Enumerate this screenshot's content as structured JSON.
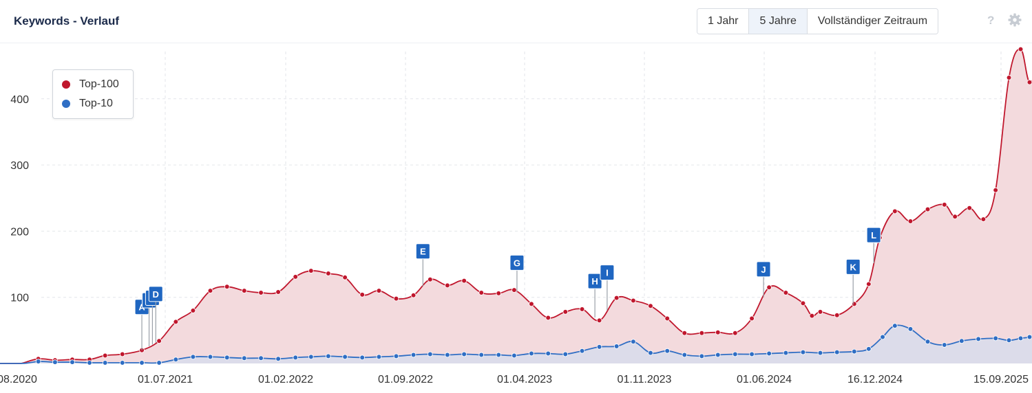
{
  "header": {
    "title": "Keywords - Verlauf",
    "buttons": [
      "1 Jahr",
      "5 Jahre",
      "Vollständiger Zeitraum"
    ],
    "active_button": "5 Jahre",
    "help_label": "?",
    "help_icon": "question-icon",
    "settings_icon": "gear-icon"
  },
  "colors": {
    "top100": "#c0172d",
    "top100_fill": "#f3dadd",
    "top10": "#2f6ec4",
    "top10_fill": "#d9dbeb",
    "marker": "#1f66c1"
  },
  "chart_data": {
    "type": "area",
    "x_tick_labels": [
      "08.2020",
      "01.07.2021",
      "01.02.2022",
      "01.09.2022",
      "01.04.2023",
      "01.11.2023",
      "01.06.2024",
      "16.12.2024",
      "15.09.2025"
    ],
    "y_ticks": [
      100,
      200,
      300,
      400
    ],
    "ylim": [
      0,
      480
    ],
    "grid": true,
    "legend_position": "top-left",
    "series": [
      {
        "name": "Top-100",
        "color": "#c0172d",
        "points": [
          [
            "2020-08-01",
            0
          ],
          [
            "2020-09-01",
            0
          ],
          [
            "2020-10-01",
            0
          ],
          [
            "2020-10-15",
            0
          ],
          [
            "2020-11-15",
            7
          ],
          [
            "2020-12-15",
            5
          ],
          [
            "2021-01-15",
            6
          ],
          [
            "2021-02-15",
            6
          ],
          [
            "2021-03-15",
            12
          ],
          [
            "2021-04-15",
            14
          ],
          [
            "2021-05-20",
            20
          ],
          [
            "2021-06-20",
            34
          ],
          [
            "2021-07-20",
            63
          ],
          [
            "2021-08-20",
            80
          ],
          [
            "2021-09-20",
            110
          ],
          [
            "2021-10-20",
            116
          ],
          [
            "2021-11-20",
            110
          ],
          [
            "2021-12-20",
            107
          ],
          [
            "2022-01-20",
            108
          ],
          [
            "2022-02-20",
            131
          ],
          [
            "2022-03-20",
            140
          ],
          [
            "2022-04-20",
            136
          ],
          [
            "2022-05-20",
            130
          ],
          [
            "2022-06-20",
            104
          ],
          [
            "2022-07-20",
            110
          ],
          [
            "2022-08-20",
            98
          ],
          [
            "2022-09-20",
            103
          ],
          [
            "2022-10-20",
            127
          ],
          [
            "2022-11-20",
            118
          ],
          [
            "2022-12-20",
            125
          ],
          [
            "2023-01-20",
            107
          ],
          [
            "2023-02-20",
            106
          ],
          [
            "2023-03-20",
            111
          ],
          [
            "2023-04-20",
            90
          ],
          [
            "2023-05-20",
            69
          ],
          [
            "2023-06-20",
            78
          ],
          [
            "2023-07-20",
            82
          ],
          [
            "2023-08-20",
            65
          ],
          [
            "2023-09-20",
            99
          ],
          [
            "2023-10-20",
            95
          ],
          [
            "2023-11-20",
            87
          ],
          [
            "2023-12-20",
            68
          ],
          [
            "2024-01-20",
            46
          ],
          [
            "2024-02-20",
            46
          ],
          [
            "2024-03-20",
            47
          ],
          [
            "2024-04-20",
            46
          ],
          [
            "2024-05-20",
            68
          ],
          [
            "2024-06-20",
            115
          ],
          [
            "2024-07-20",
            107
          ],
          [
            "2024-08-20",
            91
          ],
          [
            "2024-09-05",
            72
          ],
          [
            "2024-09-20",
            78
          ],
          [
            "2024-10-20",
            73
          ],
          [
            "2024-11-20",
            90
          ],
          [
            "2024-12-16",
            120
          ],
          [
            "2025-01-05",
            190
          ],
          [
            "2025-02-01",
            230
          ],
          [
            "2025-03-01",
            215
          ],
          [
            "2025-04-01",
            233
          ],
          [
            "2025-05-01",
            240
          ],
          [
            "2025-05-20",
            222
          ],
          [
            "2025-06-15",
            235
          ],
          [
            "2025-07-10",
            218
          ],
          [
            "2025-08-01",
            262
          ],
          [
            "2025-08-25",
            432
          ],
          [
            "2025-09-15",
            475
          ],
          [
            "2025-10-01",
            425
          ],
          [
            "2025-10-20",
            456
          ]
        ]
      },
      {
        "name": "Top-10",
        "color": "#2f6ec4",
        "points": [
          [
            "2020-08-01",
            0
          ],
          [
            "2020-10-15",
            0
          ],
          [
            "2020-11-15",
            3
          ],
          [
            "2020-12-15",
            2
          ],
          [
            "2021-01-15",
            2
          ],
          [
            "2021-02-15",
            1
          ],
          [
            "2021-03-15",
            1
          ],
          [
            "2021-04-15",
            1
          ],
          [
            "2021-05-20",
            1
          ],
          [
            "2021-06-20",
            1
          ],
          [
            "2021-07-20",
            6
          ],
          [
            "2021-08-20",
            10
          ],
          [
            "2021-09-20",
            10
          ],
          [
            "2021-10-20",
            9
          ],
          [
            "2021-11-20",
            8
          ],
          [
            "2021-12-20",
            8
          ],
          [
            "2022-01-20",
            7
          ],
          [
            "2022-02-20",
            9
          ],
          [
            "2022-03-20",
            10
          ],
          [
            "2022-04-20",
            11
          ],
          [
            "2022-05-20",
            10
          ],
          [
            "2022-06-20",
            9
          ],
          [
            "2022-07-20",
            10
          ],
          [
            "2022-08-20",
            11
          ],
          [
            "2022-09-20",
            13
          ],
          [
            "2022-10-20",
            14
          ],
          [
            "2022-11-20",
            13
          ],
          [
            "2022-12-20",
            14
          ],
          [
            "2023-01-20",
            13
          ],
          [
            "2023-02-20",
            13
          ],
          [
            "2023-03-20",
            12
          ],
          [
            "2023-04-20",
            15
          ],
          [
            "2023-05-20",
            15
          ],
          [
            "2023-06-20",
            14
          ],
          [
            "2023-07-20",
            19
          ],
          [
            "2023-08-20",
            25
          ],
          [
            "2023-09-20",
            26
          ],
          [
            "2023-10-20",
            33
          ],
          [
            "2023-11-20",
            16
          ],
          [
            "2023-12-20",
            19
          ],
          [
            "2024-01-20",
            13
          ],
          [
            "2024-02-20",
            11
          ],
          [
            "2024-03-20",
            13
          ],
          [
            "2024-04-20",
            14
          ],
          [
            "2024-05-20",
            14
          ],
          [
            "2024-06-20",
            15
          ],
          [
            "2024-07-20",
            16
          ],
          [
            "2024-08-20",
            17
          ],
          [
            "2024-09-20",
            16
          ],
          [
            "2024-10-20",
            17
          ],
          [
            "2024-11-20",
            18
          ],
          [
            "2024-12-16",
            22
          ],
          [
            "2025-01-10",
            40
          ],
          [
            "2025-02-01",
            57
          ],
          [
            "2025-03-01",
            52
          ],
          [
            "2025-04-01",
            33
          ],
          [
            "2025-05-01",
            28
          ],
          [
            "2025-06-01",
            34
          ],
          [
            "2025-07-01",
            37
          ],
          [
            "2025-08-01",
            38
          ],
          [
            "2025-08-25",
            35
          ],
          [
            "2025-09-15",
            38
          ],
          [
            "2025-10-01",
            40
          ],
          [
            "2025-10-20",
            47
          ]
        ]
      }
    ],
    "events": [
      {
        "label": "A",
        "date": "2021-05-20"
      },
      {
        "label": "B",
        "date": "2021-06-02"
      },
      {
        "label": "C",
        "date": "2021-06-08"
      },
      {
        "label": "D",
        "date": "2021-06-14"
      },
      {
        "label": "E",
        "date": "2022-10-07"
      },
      {
        "label": "G",
        "date": "2023-03-25"
      },
      {
        "label": "H",
        "date": "2023-08-12"
      },
      {
        "label": "I",
        "date": "2023-09-03"
      },
      {
        "label": "J",
        "date": "2024-06-10"
      },
      {
        "label": "K",
        "date": "2024-11-18"
      },
      {
        "label": "L",
        "date": "2024-12-25"
      }
    ]
  }
}
